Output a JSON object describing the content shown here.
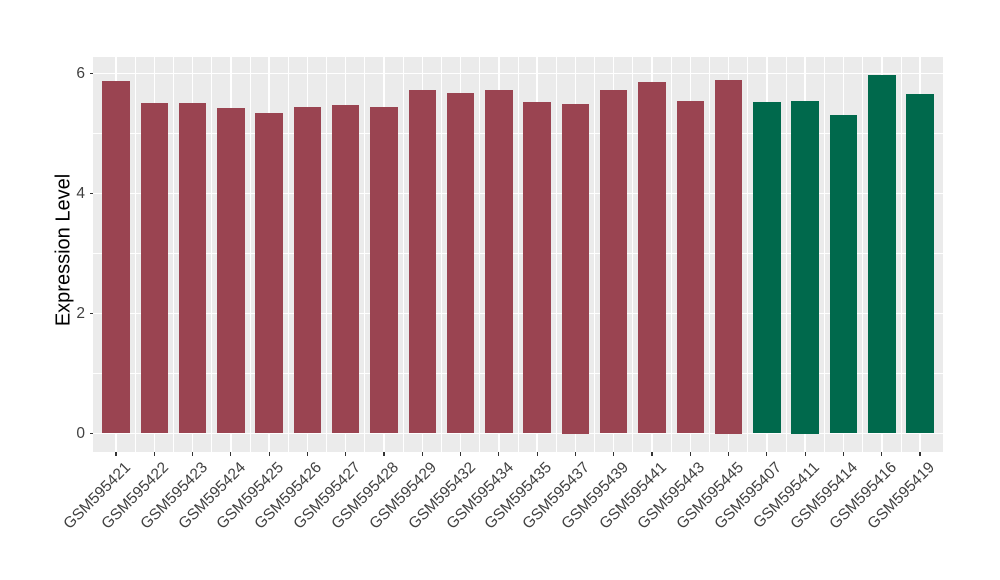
{
  "chart_data": {
    "type": "bar",
    "title": "",
    "xlabel": "",
    "ylabel": "Expression Level",
    "categories": [
      "GSM595421",
      "GSM595422",
      "GSM595423",
      "GSM595424",
      "GSM595425",
      "GSM595426",
      "GSM595427",
      "GSM595428",
      "GSM595429",
      "GSM595432",
      "GSM595434",
      "GSM595435",
      "GSM595437",
      "GSM595439",
      "GSM595441",
      "GSM595443",
      "GSM595445",
      "GSM595407",
      "GSM595411",
      "GSM595414",
      "GSM595416",
      "GSM595419"
    ],
    "values": [
      5.88,
      5.51,
      5.51,
      5.42,
      5.34,
      5.44,
      5.48,
      5.44,
      5.72,
      5.67,
      5.73,
      5.53,
      5.5,
      5.73,
      5.86,
      5.54,
      5.9,
      5.53,
      5.55,
      5.31,
      5.97,
      5.66
    ],
    "bar_colors": [
      "#9A4451",
      "#9A4451",
      "#9A4451",
      "#9A4451",
      "#9A4451",
      "#9A4451",
      "#9A4451",
      "#9A4451",
      "#9A4451",
      "#9A4451",
      "#9A4451",
      "#9A4451",
      "#9A4451",
      "#9A4451",
      "#9A4451",
      "#9A4451",
      "#9A4451",
      "#00694C",
      "#00694C",
      "#00694C",
      "#00694C",
      "#00694C"
    ],
    "group_colors": {
      "left-group": "#9A4451",
      "right-group": "#00694C"
    },
    "yticks": [
      0,
      2,
      4,
      6
    ],
    "yminor": [
      1,
      3,
      5
    ],
    "ylim": [
      -0.31,
      6.28
    ],
    "grid": true,
    "legend_position": "none",
    "panel_background": "#EBEBEB",
    "grid_color": "#FFFFFF",
    "tick_color": "#333333",
    "axis_text_color": "#404040",
    "axis_title_color": "#000000"
  }
}
